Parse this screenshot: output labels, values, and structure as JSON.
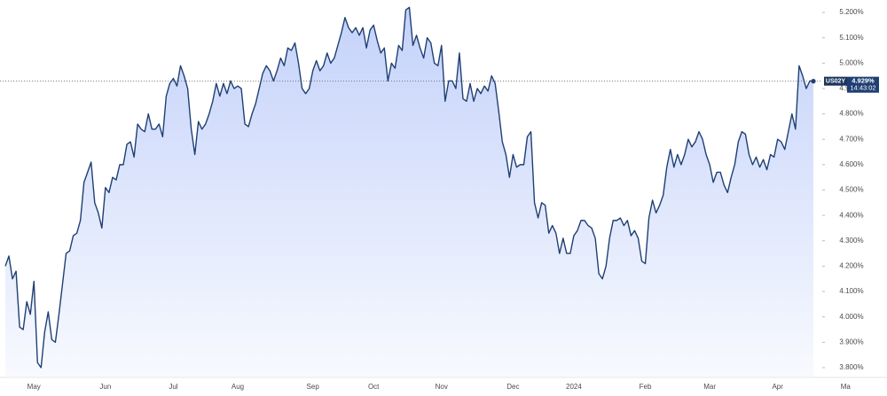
{
  "chart_data": {
    "type": "line",
    "symbol": "US02Y",
    "price_label": {
      "value": 4.929,
      "label": "4.929%"
    },
    "time_label": "14:43:02",
    "color": "#1f3f73",
    "ylim": [
      3.765,
      5.249
    ],
    "yticks": [
      {
        "value": 3.8,
        "label": "3.800%"
      },
      {
        "value": 3.9,
        "label": "3.900%"
      },
      {
        "value": 4.0,
        "label": "4.000%"
      },
      {
        "value": 4.1,
        "label": "4.100%"
      },
      {
        "value": 4.2,
        "label": "4.200%"
      },
      {
        "value": 4.3,
        "label": "4.300%"
      },
      {
        "value": 4.4,
        "label": "4.400%"
      },
      {
        "value": 4.5,
        "label": "4.500%"
      },
      {
        "value": 4.6,
        "label": "4.600%"
      },
      {
        "value": 4.7,
        "label": "4.700%"
      },
      {
        "value": 4.8,
        "label": "4.800%"
      },
      {
        "value": 4.9,
        "label": "4.900%"
      },
      {
        "value": 5.0,
        "label": "5.000%"
      },
      {
        "value": 5.1,
        "label": "5.100%"
      },
      {
        "value": 5.2,
        "label": "5.200%"
      }
    ],
    "categories": [
      null,
      null,
      null,
      null,
      null,
      null,
      null,
      null,
      "May",
      null,
      null,
      null,
      null,
      null,
      null,
      null,
      null,
      null,
      null,
      null,
      null,
      null,
      null,
      null,
      null,
      null,
      null,
      null,
      "Jun",
      null,
      null,
      null,
      null,
      null,
      null,
      null,
      null,
      null,
      null,
      null,
      null,
      null,
      null,
      null,
      null,
      null,
      null,
      "Jul",
      null,
      null,
      null,
      null,
      null,
      null,
      null,
      null,
      null,
      null,
      null,
      null,
      null,
      null,
      null,
      null,
      null,
      "Aug",
      null,
      null,
      null,
      null,
      null,
      null,
      null,
      null,
      null,
      null,
      null,
      null,
      null,
      null,
      null,
      null,
      null,
      null,
      null,
      null,
      "Sep",
      null,
      null,
      null,
      null,
      null,
      null,
      null,
      null,
      null,
      null,
      null,
      null,
      null,
      null,
      null,
      null,
      "Oct",
      null,
      null,
      null,
      null,
      null,
      null,
      null,
      null,
      null,
      null,
      null,
      null,
      null,
      null,
      null,
      null,
      null,
      null,
      "Nov",
      null,
      null,
      null,
      null,
      null,
      null,
      null,
      null,
      null,
      null,
      null,
      null,
      null,
      null,
      null,
      null,
      null,
      null,
      null,
      "Dec",
      null,
      null,
      null,
      null,
      null,
      null,
      null,
      null,
      null,
      null,
      null,
      null,
      null,
      null,
      null,
      null,
      "2024",
      null,
      null,
      null,
      null,
      null,
      null,
      null,
      null,
      null,
      null,
      null,
      null,
      null,
      null,
      null,
      null,
      null,
      null,
      null,
      "Feb",
      null,
      null,
      null,
      null,
      null,
      null,
      null,
      null,
      null,
      null,
      null,
      null,
      null,
      null,
      null,
      null,
      null,
      "Mar",
      null,
      null,
      null,
      null,
      null,
      null,
      null,
      null,
      null,
      null,
      null,
      null,
      null,
      null,
      null,
      null,
      null,
      null,
      "Apr",
      null,
      null,
      null,
      null,
      null,
      null,
      null,
      null,
      null,
      null,
      null,
      null,
      null,
      null,
      null,
      null,
      null,
      null,
      "Ma"
    ],
    "values": [
      4.2,
      4.24,
      4.15,
      4.18,
      3.96,
      3.95,
      4.06,
      4.01,
      4.14,
      3.82,
      3.8,
      3.94,
      4.02,
      3.91,
      3.9,
      4.01,
      4.13,
      4.25,
      4.26,
      4.32,
      4.33,
      4.38,
      4.53,
      4.57,
      4.61,
      4.45,
      4.41,
      4.35,
      4.51,
      4.49,
      4.55,
      4.54,
      4.6,
      4.6,
      4.68,
      4.69,
      4.63,
      4.76,
      4.74,
      4.73,
      4.8,
      4.74,
      4.74,
      4.76,
      4.71,
      4.87,
      4.92,
      4.94,
      4.91,
      4.99,
      4.95,
      4.9,
      4.74,
      4.64,
      4.77,
      4.74,
      4.76,
      4.8,
      4.85,
      4.92,
      4.87,
      4.92,
      4.88,
      4.93,
      4.9,
      4.91,
      4.9,
      4.76,
      4.75,
      4.8,
      4.84,
      4.9,
      4.96,
      4.99,
      4.97,
      4.93,
      4.97,
      5.02,
      4.99,
      5.06,
      5.05,
      5.08,
      5.0,
      4.9,
      4.88,
      4.9,
      4.97,
      5.01,
      4.97,
      4.99,
      5.04,
      5.0,
      5.02,
      5.07,
      5.12,
      5.18,
      5.14,
      5.12,
      5.14,
      5.11,
      5.14,
      5.06,
      5.13,
      5.15,
      5.09,
      5.04,
      5.06,
      4.93,
      5.0,
      4.98,
      5.07,
      5.05,
      5.21,
      5.22,
      5.07,
      5.11,
      5.06,
      5.02,
      5.1,
      5.08,
      5.0,
      4.99,
      5.07,
      4.85,
      4.93,
      4.93,
      4.9,
      5.04,
      4.86,
      4.85,
      4.92,
      4.85,
      4.9,
      4.88,
      4.91,
      4.89,
      4.95,
      4.92,
      4.81,
      4.69,
      4.64,
      4.55,
      4.64,
      4.59,
      4.6,
      4.6,
      4.71,
      4.73,
      4.45,
      4.39,
      4.45,
      4.44,
      4.33,
      4.36,
      4.33,
      4.25,
      4.31,
      4.25,
      4.25,
      4.32,
      4.34,
      4.38,
      4.38,
      4.36,
      4.35,
      4.31,
      4.17,
      4.15,
      4.2,
      4.31,
      4.38,
      4.38,
      4.39,
      4.36,
      4.38,
      4.32,
      4.34,
      4.31,
      4.22,
      4.21,
      4.39,
      4.46,
      4.41,
      4.44,
      4.48,
      4.59,
      4.66,
      4.59,
      4.64,
      4.6,
      4.64,
      4.7,
      4.67,
      4.69,
      4.73,
      4.7,
      4.64,
      4.6,
      4.53,
      4.57,
      4.57,
      4.52,
      4.49,
      4.55,
      4.6,
      4.69,
      4.73,
      4.72,
      4.64,
      4.6,
      4.63,
      4.59,
      4.62,
      4.58,
      4.64,
      4.63,
      4.7,
      4.69,
      4.66,
      4.73,
      4.8,
      4.74,
      4.99,
      4.95,
      4.9,
      4.93,
      4.929,
      null,
      null,
      null,
      null,
      null,
      null,
      null,
      null,
      null
    ]
  }
}
